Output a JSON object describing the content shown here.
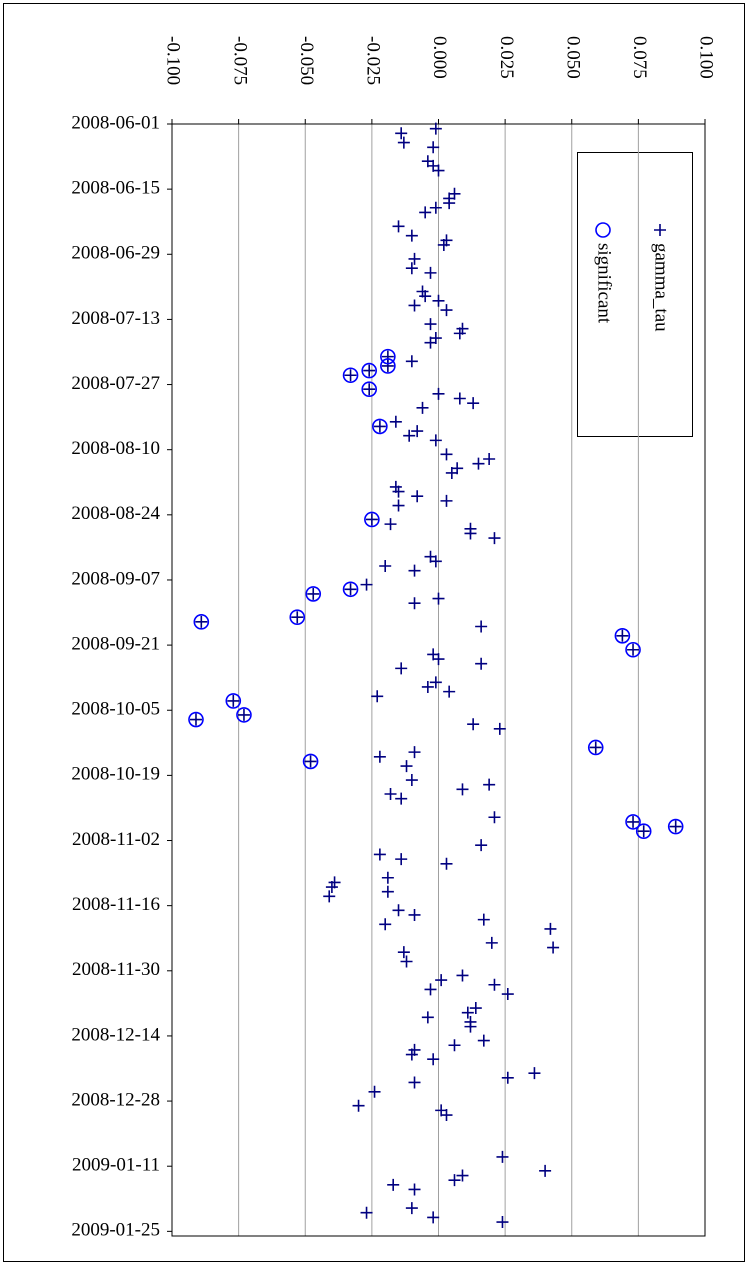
{
  "chart_data": {
    "type": "scatter",
    "x_grid": true,
    "legend": "upper-right",
    "xlim": [
      -0.1,
      0.1
    ],
    "xticks": [
      {
        "value": -0.1,
        "label": "-0.100"
      },
      {
        "value": -0.075,
        "label": "-0.075"
      },
      {
        "value": -0.05,
        "label": "-0.050"
      },
      {
        "value": -0.025,
        "label": "-0.025"
      },
      {
        "value": 0,
        "label": "0.000"
      },
      {
        "value": 0.025,
        "label": "0.025"
      },
      {
        "value": 0.05,
        "label": "0.050"
      },
      {
        "value": 0.075,
        "label": "0.075"
      },
      {
        "value": 0.1,
        "label": "0.100"
      }
    ],
    "ylim": [
      "2008-06-01",
      "2009-01-26"
    ],
    "yticks": [
      "2008-06-01",
      "2008-06-15",
      "2008-06-29",
      "2008-07-13",
      "2008-07-27",
      "2008-08-10",
      "2008-08-24",
      "2008-09-07",
      "2008-09-21",
      "2008-10-05",
      "2008-10-19",
      "2008-11-02",
      "2008-11-16",
      "2008-11-30",
      "2008-12-14",
      "2008-12-28",
      "2009-01-11",
      "2009-01-25"
    ],
    "series": [
      {
        "name": "gamma_tau",
        "color": "#000080",
        "marker": "plus",
        "x": [
          "2008-06-03",
          "2008-06-05",
          "2008-06-02",
          "2008-06-06",
          "2008-06-09",
          "2008-06-10",
          "2008-06-11",
          "2008-06-16",
          "2008-06-18",
          "2008-06-17",
          "2008-06-19",
          "2008-06-20",
          "2008-06-23",
          "2008-06-25",
          "2008-06-26",
          "2008-06-27",
          "2008-06-30",
          "2008-07-02",
          "2008-07-03",
          "2008-07-07",
          "2008-07-08",
          "2008-07-09",
          "2008-07-10",
          "2008-07-11",
          "2008-07-14",
          "2008-07-15",
          "2008-07-16",
          "2008-07-17",
          "2008-07-18",
          "2008-07-22",
          "2008-07-21",
          "2008-07-23",
          "2008-07-24",
          "2008-07-25",
          "2008-07-28",
          "2008-07-29",
          "2008-07-30",
          "2008-07-31",
          "2008-08-01",
          "2008-08-04",
          "2008-08-05",
          "2008-08-06",
          "2008-08-07",
          "2008-08-08",
          "2008-08-11",
          "2008-08-12",
          "2008-08-13",
          "2008-08-14",
          "2008-08-15",
          "2008-08-18",
          "2008-08-19",
          "2008-08-20",
          "2008-08-21",
          "2008-08-22",
          "2008-08-25",
          "2008-08-26",
          "2008-08-27",
          "2008-08-28",
          "2008-08-29",
          "2008-09-02",
          "2008-09-03",
          "2008-09-04",
          "2008-09-05",
          "2008-09-08",
          "2008-09-09",
          "2008-09-10",
          "2008-09-11",
          "2008-09-12",
          "2008-09-15",
          "2008-09-16",
          "2008-09-17",
          "2008-09-19",
          "2008-09-22",
          "2008-09-23",
          "2008-09-24",
          "2008-09-25",
          "2008-09-26",
          "2008-09-29",
          "2008-09-30",
          "2008-10-01",
          "2008-10-02",
          "2008-10-03",
          "2008-10-06",
          "2008-10-07",
          "2008-10-08",
          "2008-10-09",
          "2008-10-13",
          "2008-10-14",
          "2008-10-15",
          "2008-10-16",
          "2008-10-17",
          "2008-10-20",
          "2008-10-21",
          "2008-10-22",
          "2008-10-23",
          "2008-10-24",
          "2008-10-28",
          "2008-10-29",
          "2008-10-30",
          "2008-10-31",
          "2008-11-03",
          "2008-11-05",
          "2008-11-06",
          "2008-11-07",
          "2008-11-10",
          "2008-11-11",
          "2008-11-12",
          "2008-11-13",
          "2008-11-14",
          "2008-11-17",
          "2008-11-18",
          "2008-11-19",
          "2008-11-20",
          "2008-11-21",
          "2008-11-24",
          "2008-11-25",
          "2008-11-26",
          "2008-11-28",
          "2008-12-01",
          "2008-12-02",
          "2008-12-03",
          "2008-12-04",
          "2008-12-05",
          "2008-12-08",
          "2008-12-09",
          "2008-12-10",
          "2008-12-11",
          "2008-12-12",
          "2008-12-15",
          "2008-12-16",
          "2008-12-17",
          "2008-12-18",
          "2008-12-19",
          "2008-12-22",
          "2008-12-23",
          "2008-12-24",
          "2008-12-26",
          "2008-12-29",
          "2008-12-30",
          "2008-12-31",
          "2009-01-09",
          "2009-01-12",
          "2009-01-13",
          "2009-01-14",
          "2009-01-15",
          "2009-01-16",
          "2009-01-20",
          "2009-01-21",
          "2009-01-22",
          "2009-01-23"
        ],
        "values": [
          -0.014,
          -0.013,
          -0.001,
          -0.002,
          -0.004,
          -0.002,
          0.0,
          0.006,
          0.004,
          0.004,
          -0.001,
          -0.005,
          -0.015,
          -0.01,
          0.003,
          0.002,
          -0.009,
          -0.01,
          -0.003,
          -0.006,
          -0.005,
          0.0,
          -0.009,
          0.003,
          -0.003,
          0.009,
          0.008,
          -0.001,
          -0.003,
          -0.01,
          -0.019,
          -0.019,
          -0.026,
          -0.033,
          -0.026,
          0.0,
          0.008,
          0.013,
          -0.006,
          -0.016,
          -0.022,
          -0.008,
          -0.011,
          -0.001,
          0.003,
          0.019,
          0.015,
          0.007,
          0.005,
          -0.016,
          -0.015,
          -0.008,
          0.003,
          -0.015,
          -0.025,
          -0.018,
          0.012,
          0.012,
          0.021,
          -0.003,
          -0.001,
          -0.02,
          -0.009,
          -0.027,
          -0.033,
          -0.047,
          0.0,
          -0.009,
          -0.053,
          -0.089,
          0.016,
          0.069,
          0.073,
          -0.002,
          0.0,
          0.016,
          -0.014,
          -0.001,
          -0.004,
          0.004,
          -0.023,
          -0.077,
          -0.073,
          -0.091,
          0.013,
          0.023,
          0.059,
          -0.009,
          -0.022,
          -0.048,
          -0.012,
          -0.01,
          0.019,
          0.009,
          -0.018,
          -0.014,
          0.021,
          0.073,
          0.089,
          0.077,
          0.016,
          -0.022,
          -0.014,
          0.003,
          -0.019,
          -0.039,
          -0.04,
          -0.019,
          -0.041,
          -0.015,
          -0.009,
          0.017,
          -0.02,
          0.042,
          0.02,
          0.043,
          -0.013,
          -0.012,
          0.009,
          0.001,
          0.021,
          -0.003,
          0.026,
          0.014,
          0.011,
          -0.004,
          0.012,
          0.012,
          0.017,
          0.006,
          -0.009,
          -0.01,
          -0.002,
          0.036,
          0.026,
          -0.009,
          -0.024,
          -0.03,
          0.001,
          0.003,
          0.024,
          0.04,
          0.009,
          0.006,
          -0.017,
          -0.009,
          -0.01,
          -0.027,
          -0.002,
          0.024
        ]
      },
      {
        "name": "significant",
        "color": "#0000ff",
        "marker": "circle",
        "x": [
          "2008-07-21",
          "2008-07-23",
          "2008-07-24",
          "2008-07-25",
          "2008-07-28",
          "2008-08-05",
          "2008-08-25",
          "2008-09-09",
          "2008-09-10",
          "2008-09-15",
          "2008-09-16",
          "2008-09-19",
          "2008-09-22",
          "2008-10-03",
          "2008-10-06",
          "2008-10-07",
          "2008-10-13",
          "2008-10-16",
          "2008-10-29",
          "2008-10-30",
          "2008-10-31"
        ],
        "values": [
          -0.019,
          -0.019,
          -0.026,
          -0.033,
          -0.026,
          -0.022,
          -0.025,
          -0.033,
          -0.047,
          -0.053,
          -0.089,
          0.069,
          0.073,
          -0.077,
          -0.073,
          -0.091,
          0.059,
          -0.048,
          0.073,
          0.089,
          0.077
        ]
      }
    ]
  }
}
